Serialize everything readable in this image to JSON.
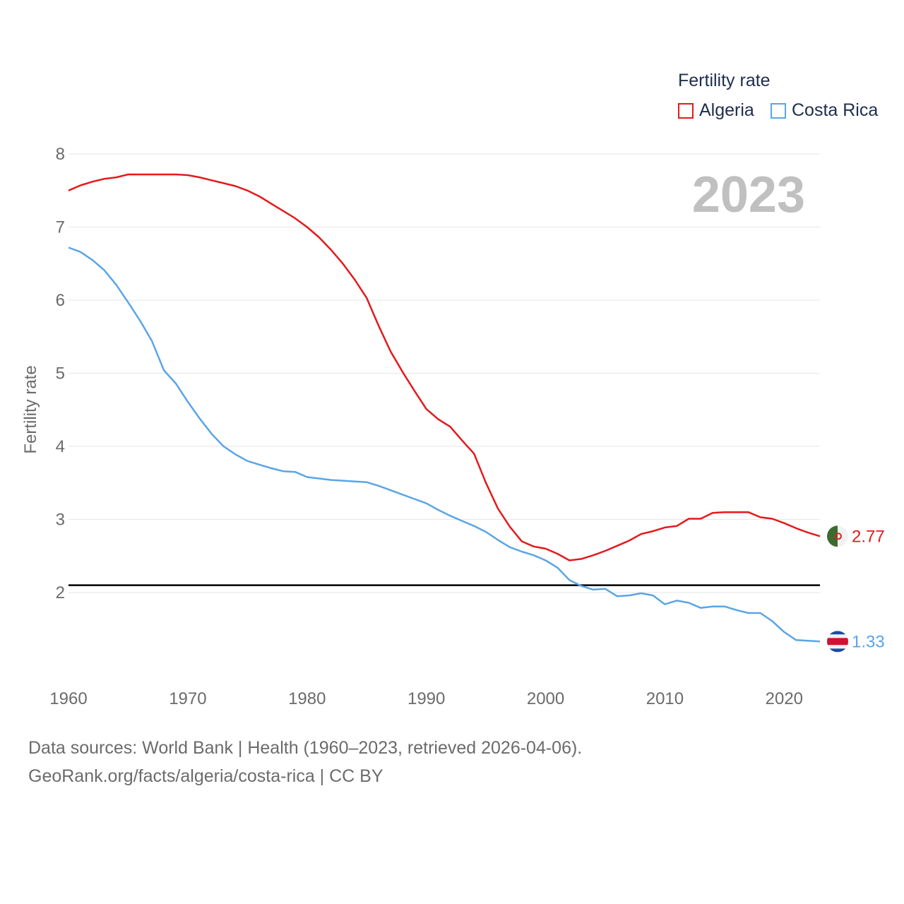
{
  "chart_data": {
    "type": "line",
    "title": "",
    "legend_title": "Fertility rate",
    "ylabel": "Fertility rate",
    "xlabel": "",
    "year_label": "2023",
    "xlim": [
      1960,
      2023
    ],
    "ylim": [
      1.0,
      8.0
    ],
    "x_ticks": [
      "1960",
      "1970",
      "1980",
      "1990",
      "2000",
      "2010",
      "2020"
    ],
    "y_ticks": [
      "2",
      "3",
      "4",
      "5",
      "6",
      "7",
      "8"
    ],
    "reference_line": 2.1,
    "x": [
      1960,
      1961,
      1962,
      1963,
      1964,
      1965,
      1966,
      1967,
      1968,
      1969,
      1970,
      1971,
      1972,
      1973,
      1974,
      1975,
      1976,
      1977,
      1978,
      1979,
      1980,
      1981,
      1982,
      1983,
      1984,
      1985,
      1986,
      1987,
      1988,
      1989,
      1990,
      1991,
      1992,
      1993,
      1994,
      1995,
      1996,
      1997,
      1998,
      1999,
      2000,
      2001,
      2002,
      2003,
      2004,
      2005,
      2006,
      2007,
      2008,
      2009,
      2010,
      2011,
      2012,
      2013,
      2014,
      2015,
      2016,
      2017,
      2018,
      2019,
      2020,
      2021,
      2022,
      2023
    ],
    "series": [
      {
        "name": "Algeria",
        "color": "#e31a1c",
        "end_label": "2.77",
        "flag": "algeria-flag-icon",
        "values": [
          7.5,
          7.57,
          7.62,
          7.66,
          7.68,
          7.72,
          7.72,
          7.72,
          7.72,
          7.72,
          7.71,
          7.68,
          7.64,
          7.6,
          7.56,
          7.5,
          7.42,
          7.32,
          7.22,
          7.12,
          7.0,
          6.86,
          6.69,
          6.5,
          6.28,
          6.03,
          5.65,
          5.3,
          5.02,
          4.76,
          4.51,
          4.37,
          4.27,
          4.08,
          3.9,
          3.5,
          3.15,
          2.9,
          2.7,
          2.63,
          2.6,
          2.53,
          2.44,
          2.46,
          2.51,
          2.57,
          2.64,
          2.71,
          2.8,
          2.84,
          2.89,
          2.91,
          3.01,
          3.01,
          3.09,
          3.1,
          3.1,
          3.1,
          3.03,
          3.01,
          2.95,
          2.88,
          2.82,
          2.77
        ]
      },
      {
        "name": "Costa Rica",
        "color": "#5aa5e6",
        "end_label": "1.33",
        "flag": "costa-rica-flag-icon",
        "values": [
          6.72,
          6.66,
          6.55,
          6.41,
          6.21,
          5.97,
          5.72,
          5.44,
          5.04,
          4.86,
          4.61,
          4.38,
          4.17,
          4.0,
          3.89,
          3.8,
          3.75,
          3.7,
          3.66,
          3.65,
          3.58,
          3.56,
          3.54,
          3.53,
          3.52,
          3.51,
          3.46,
          3.4,
          3.34,
          3.28,
          3.22,
          3.13,
          3.05,
          2.98,
          2.91,
          2.83,
          2.72,
          2.62,
          2.56,
          2.51,
          2.44,
          2.34,
          2.17,
          2.09,
          2.04,
          2.05,
          1.95,
          1.96,
          1.99,
          1.96,
          1.84,
          1.89,
          1.86,
          1.79,
          1.81,
          1.81,
          1.76,
          1.72,
          1.72,
          1.61,
          1.46,
          1.35,
          1.34,
          1.33
        ]
      }
    ]
  },
  "footer": {
    "line1": "Data sources: World Bank | Health (1960–2023, retrieved 2026-04-06).",
    "line2": "GeoRank.org/facts/algeria/costa-rica | CC BY"
  }
}
